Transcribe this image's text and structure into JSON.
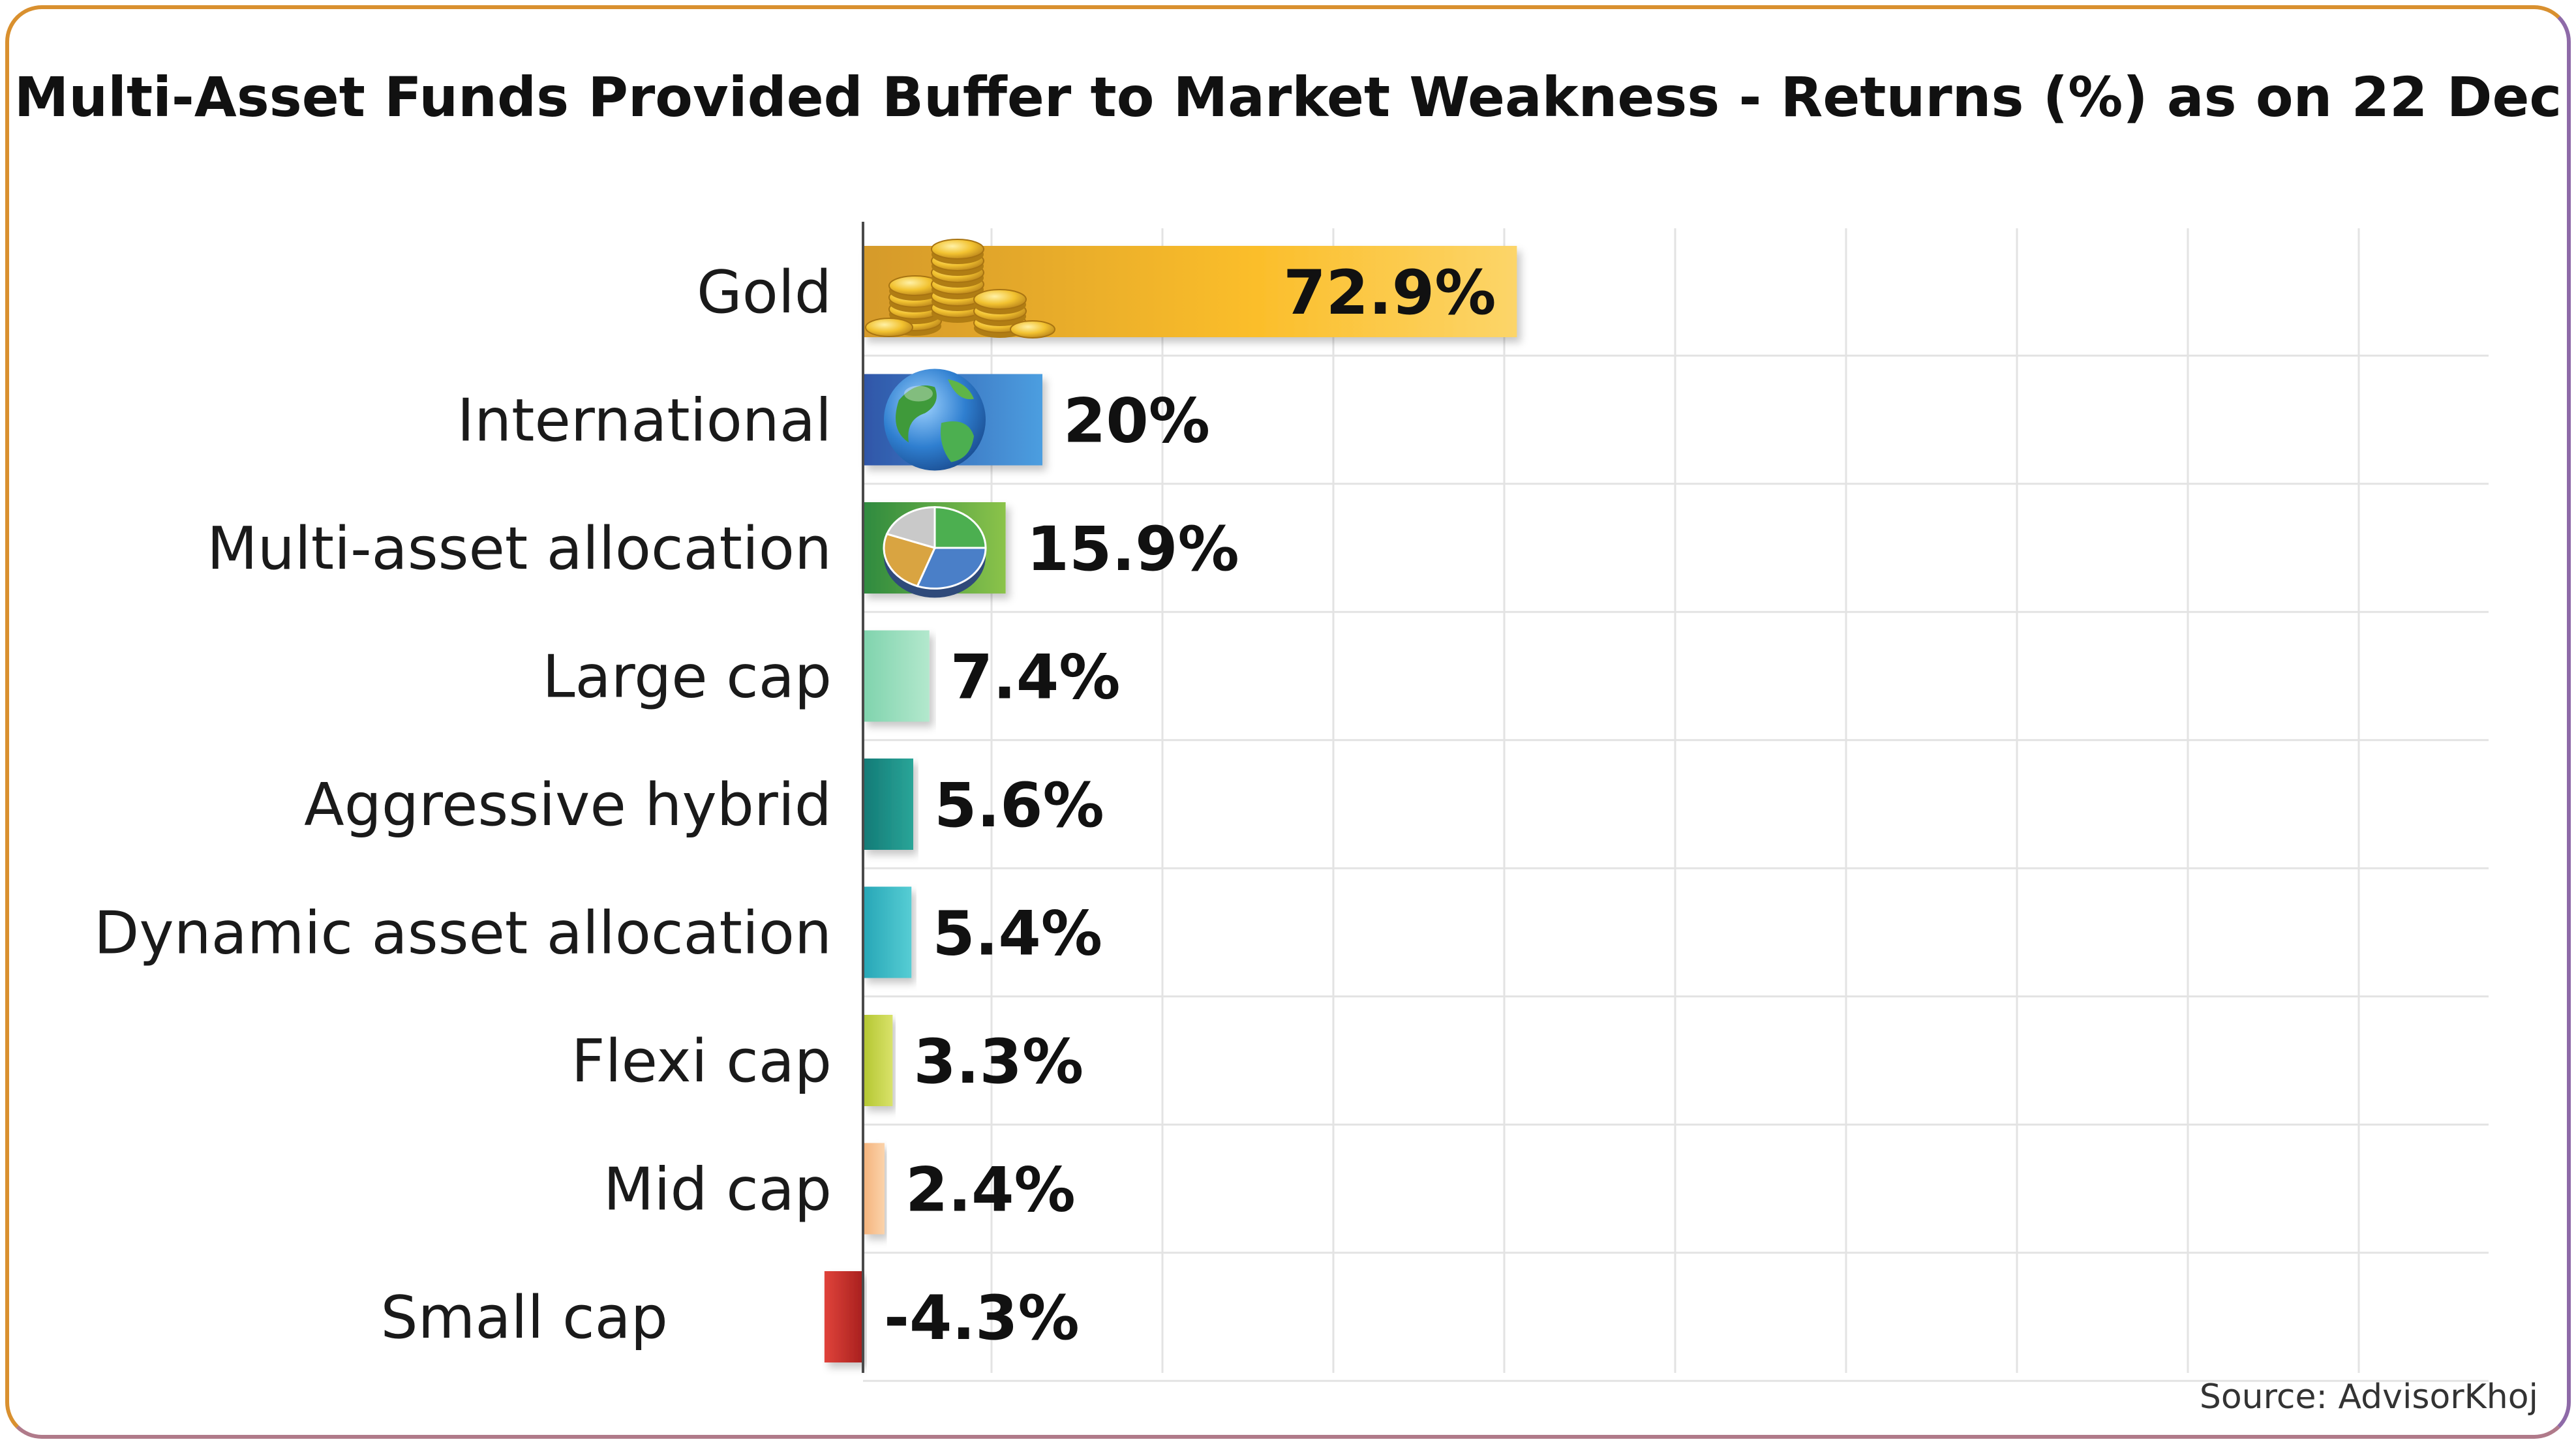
{
  "source": "Source: AdvisorKhoj",
  "chart_data": {
    "type": "bar",
    "orientation": "horizontal",
    "title": "Multi-Asset Funds Provided Buffer to Market Weakness - Returns (%) as on 22 Dec",
    "xlabel": "",
    "ylabel": "",
    "xlim": [
      -5,
      76
    ],
    "grid": true,
    "legend": "none",
    "categories": [
      "Gold",
      "International",
      "Multi-asset allocation",
      "Large cap",
      "Aggressive hybrid",
      "Dynamic asset allocation",
      "Flexi cap",
      "Mid cap",
      "Small cap"
    ],
    "values": [
      72.9,
      20,
      15.9,
      7.4,
      5.6,
      5.4,
      3.3,
      2.4,
      -4.3
    ],
    "value_labels": [
      "72.9%",
      "20%",
      "15.9%",
      "7.4%",
      "5.6%",
      "5.4%",
      "3.3%",
      "2.4%",
      "-4.3%"
    ],
    "colors": [
      "#f2b632",
      "#3f78c9",
      "#4fa63e",
      "#97dcb8",
      "#1f8f87",
      "#37b8c3",
      "#c5d444",
      "#f7c08e",
      "#c9302c"
    ],
    "icons": [
      "gold-coins-icon",
      "globe-icon",
      "pie-chart-icon",
      "",
      "",
      "",
      "",
      "",
      ""
    ]
  }
}
